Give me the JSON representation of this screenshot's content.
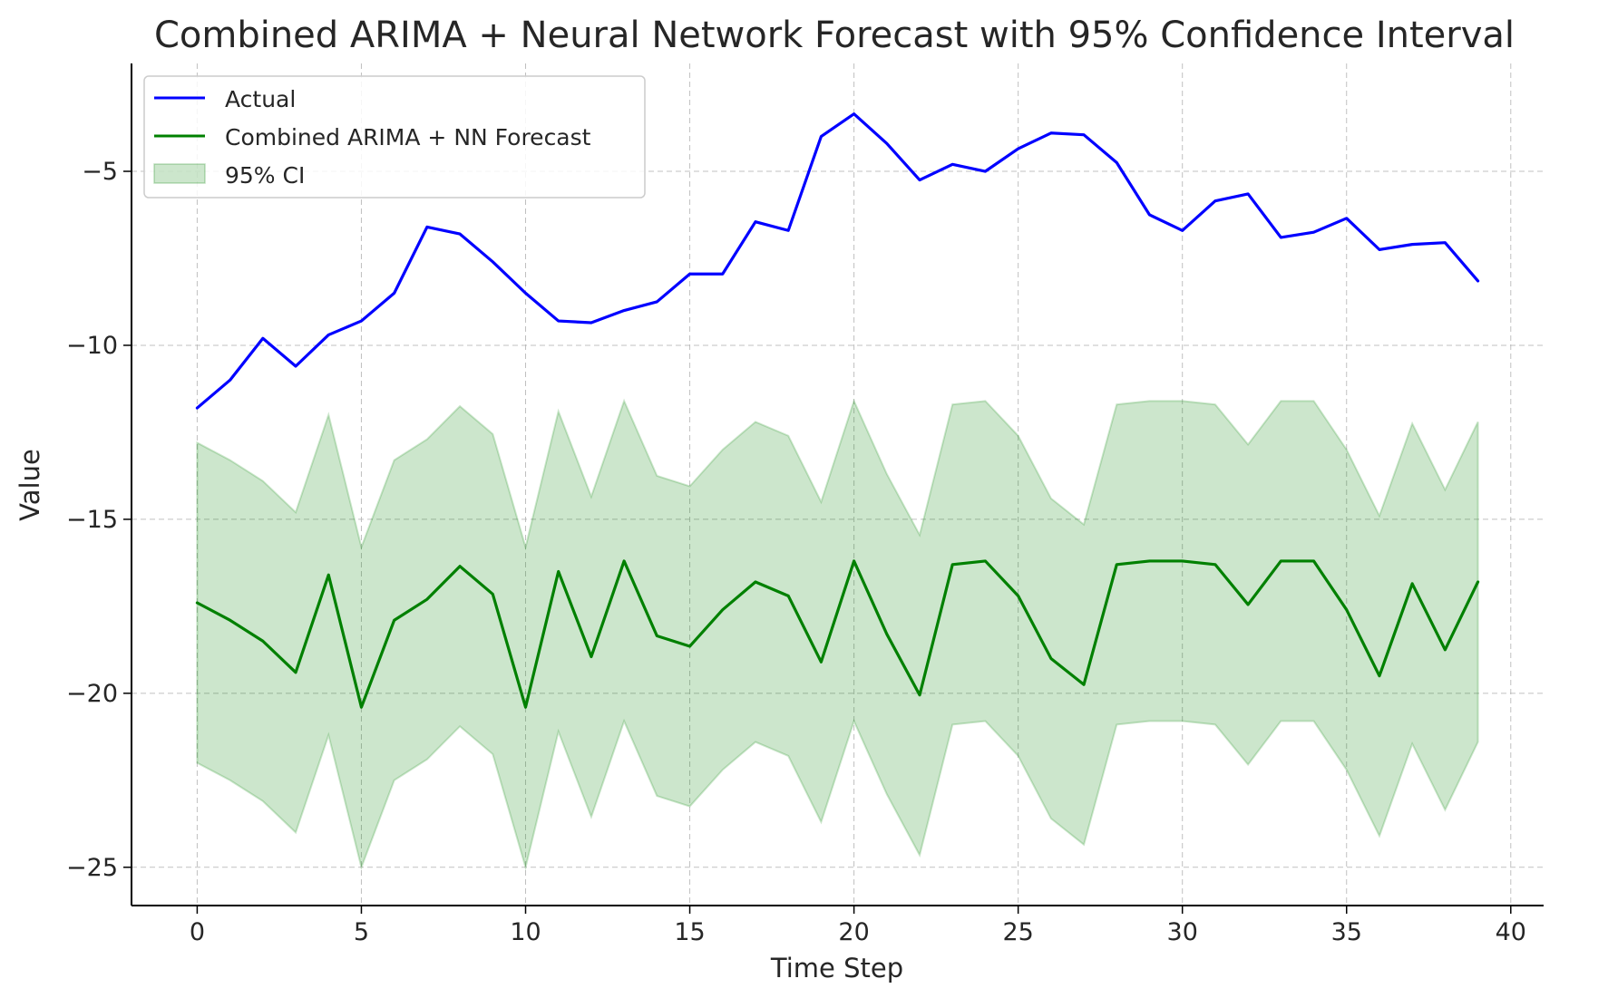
{
  "chart_data": {
    "type": "line",
    "title": "Combined ARIMA + Neural Network Forecast with 95% Confidence Interval",
    "xlabel": "Time Step",
    "ylabel": "Value",
    "xlim": [
      -2,
      41
    ],
    "ylim": [
      -26.1,
      -1.9
    ],
    "xticks": [
      0,
      5,
      10,
      15,
      20,
      25,
      30,
      35,
      40
    ],
    "xtick_labels": [
      "0",
      "5",
      "10",
      "15",
      "20",
      "25",
      "30",
      "35",
      "40"
    ],
    "yticks": [
      -25,
      -20,
      -15,
      -10,
      -5
    ],
    "ytick_labels": [
      "−25",
      "−20",
      "−15",
      "−10",
      "−5"
    ],
    "grid": true,
    "legend_position": "upper-left",
    "x": [
      0,
      1,
      2,
      3,
      4,
      5,
      6,
      7,
      8,
      9,
      10,
      11,
      12,
      13,
      14,
      15,
      16,
      17,
      18,
      19,
      20,
      21,
      22,
      23,
      24,
      25,
      26,
      27,
      28,
      29,
      30,
      31,
      32,
      33,
      34,
      35,
      36,
      37,
      38,
      39
    ],
    "series": [
      {
        "name": "Actual",
        "kind": "line",
        "color": "#0000ff",
        "values": [
          -11.8,
          -11.0,
          -9.8,
          -10.6,
          -9.7,
          -9.3,
          -8.5,
          -6.6,
          -6.8,
          -7.6,
          -8.5,
          -9.3,
          -9.35,
          -9.0,
          -8.75,
          -7.95,
          -7.95,
          -6.45,
          -6.7,
          -4.0,
          -3.35,
          -4.2,
          -5.25,
          -4.8,
          -5.0,
          -4.35,
          -3.9,
          -3.95,
          -4.75,
          -6.25,
          -6.7,
          -5.85,
          -5.65,
          -6.9,
          -6.75,
          -6.35,
          -7.25,
          -7.1,
          -7.05,
          -8.15
        ]
      },
      {
        "name": "Combined ARIMA + NN Forecast",
        "kind": "line",
        "color": "#008000",
        "values": [
          -17.4,
          -17.9,
          -18.5,
          -19.4,
          -16.6,
          -20.4,
          -17.9,
          -17.3,
          -16.35,
          -17.15,
          -20.4,
          -16.5,
          -18.95,
          -16.2,
          -18.35,
          -18.65,
          -17.6,
          -16.8,
          -17.2,
          -19.1,
          -16.2,
          -18.3,
          -20.05,
          -16.3,
          -16.2,
          -17.2,
          -19.0,
          -19.75,
          -16.3,
          -16.2,
          -16.2,
          -16.3,
          -17.45,
          -16.2,
          -16.2,
          -17.6,
          -19.5,
          -16.85,
          -18.75,
          -16.8
        ]
      },
      {
        "name": "95% CI",
        "kind": "band",
        "color": "#008000",
        "upper": [
          -12.8,
          -13.3,
          -13.9,
          -14.8,
          -12.0,
          -15.8,
          -13.3,
          -12.7,
          -11.75,
          -12.55,
          -15.8,
          -11.9,
          -14.35,
          -11.6,
          -13.75,
          -14.05,
          -13.0,
          -12.2,
          -12.6,
          -14.5,
          -11.6,
          -13.7,
          -15.45,
          -11.7,
          -11.6,
          -12.6,
          -14.4,
          -15.15,
          -11.7,
          -11.6,
          -11.6,
          -11.7,
          -12.85,
          -11.6,
          -11.6,
          -13.0,
          -14.9,
          -12.25,
          -14.15,
          -12.2
        ],
        "lower": [
          -22.0,
          -22.5,
          -23.1,
          -24.0,
          -21.2,
          -25.0,
          -22.5,
          -21.9,
          -20.95,
          -21.75,
          -25.0,
          -21.1,
          -23.55,
          -20.8,
          -22.95,
          -23.25,
          -22.2,
          -21.4,
          -21.8,
          -23.7,
          -20.8,
          -22.9,
          -24.65,
          -20.9,
          -20.8,
          -21.8,
          -23.6,
          -24.35,
          -20.9,
          -20.8,
          -20.8,
          -20.9,
          -22.05,
          -20.8,
          -20.8,
          -22.2,
          -24.1,
          -21.45,
          -23.35,
          -21.4
        ]
      }
    ]
  }
}
